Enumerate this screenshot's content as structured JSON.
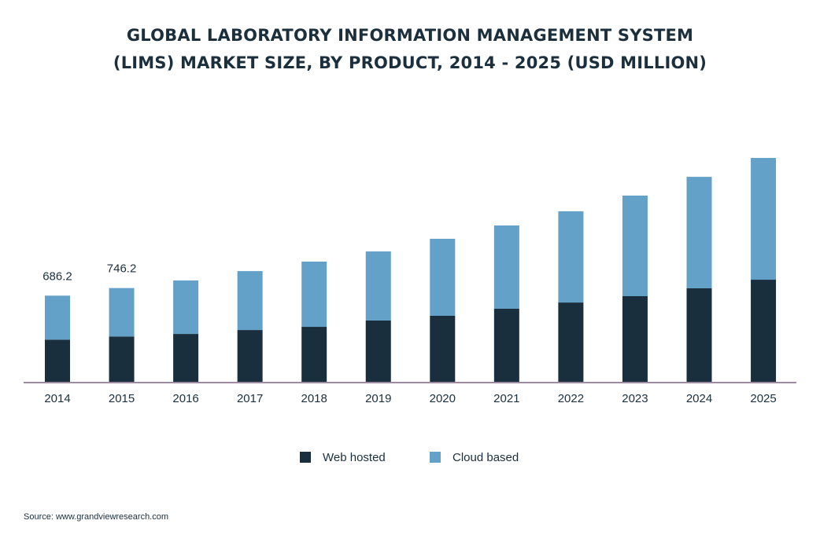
{
  "chart_data": {
    "type": "bar",
    "stacked": true,
    "title_lines": [
      "GLOBAL LABORATORY INFORMATION MANAGEMENT SYSTEM",
      "(LIMS) MARKET SIZE, BY PRODUCT, 2014 - 2025 (USD MILLION)"
    ],
    "categories": [
      "2014",
      "2015",
      "2016",
      "2017",
      "2018",
      "2019",
      "2020",
      "2021",
      "2022",
      "2023",
      "2024",
      "2025"
    ],
    "series": [
      {
        "name": "Web hosted",
        "color": "#1a2f3d",
        "values": [
          339,
          364,
          384,
          415,
          440,
          490,
          527,
          583,
          632,
          682,
          744,
          812
        ]
      },
      {
        "name": "Cloud based",
        "color": "#64a1c9",
        "values": [
          347.2,
          382.2,
          422,
          465,
          515,
          545,
          608,
          657,
          720,
          794,
          880,
          961
        ]
      }
    ],
    "data_labels": [
      {
        "category": "2014",
        "text": "686.2"
      },
      {
        "category": "2015",
        "text": "746.2"
      }
    ],
    "xlabel": "",
    "ylabel": "",
    "y_axis_visible": false,
    "grid": false,
    "legend_position": "bottom",
    "axis_color": "#9b8aa0"
  },
  "source": "Source: www.grandviewresearch.com"
}
